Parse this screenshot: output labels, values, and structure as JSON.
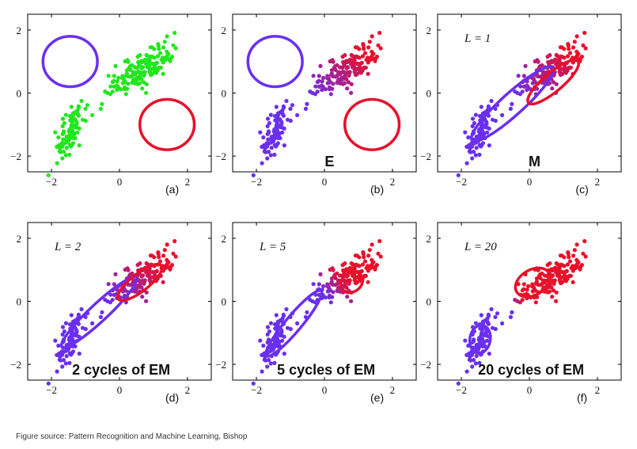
{
  "caption": "Figure source: Pattern Recognition and Machine Learning, Bishop",
  "chart_data": [
    {
      "type": "scatter",
      "sublabel": "(a)",
      "iter_label": "",
      "step_label": "",
      "mode": "data",
      "xlim": [
        -2.7,
        2.7
      ],
      "ylim": [
        -2.5,
        2.5
      ],
      "xticks": [
        "−2",
        "0",
        "2"
      ],
      "yticks": [
        "2",
        "0",
        "−2"
      ],
      "ellipses": [
        {
          "name": "blue-component",
          "color": "#6a2ff0",
          "cx": -1.45,
          "cy": 1.0,
          "rx": 0.8,
          "ry": 0.8,
          "angle": 0
        },
        {
          "name": "red-component",
          "color": "#e8102a",
          "cx": 1.4,
          "cy": -1.0,
          "rx": 0.8,
          "ry": 0.8,
          "angle": 0
        }
      ]
    },
    {
      "type": "scatter",
      "sublabel": "(b)",
      "iter_label": "",
      "step_label": "E",
      "mode": "estep",
      "xlim": [
        -2.7,
        2.7
      ],
      "ylim": [
        -2.5,
        2.5
      ],
      "xticks": [
        "−2",
        "0",
        "2"
      ],
      "yticks": [
        "2",
        "0",
        "−2"
      ],
      "ellipses": [
        {
          "name": "blue-component",
          "color": "#6a2ff0",
          "cx": -1.45,
          "cy": 1.0,
          "rx": 0.8,
          "ry": 0.8,
          "angle": 0
        },
        {
          "name": "red-component",
          "color": "#e8102a",
          "cx": 1.4,
          "cy": -1.0,
          "rx": 0.8,
          "ry": 0.8,
          "angle": 0
        }
      ]
    },
    {
      "type": "scatter",
      "sublabel": "(c)",
      "iter_label": "L = 1",
      "step_label": "M",
      "mode": "estep",
      "xlim": [
        -2.7,
        2.7
      ],
      "ylim": [
        -2.5,
        2.5
      ],
      "xticks": [
        "−2",
        "0",
        "2"
      ],
      "yticks": [
        "2",
        "0",
        "−2"
      ],
      "ellipses": [
        {
          "name": "blue-component",
          "color": "#6a2ff0",
          "cx": -0.5,
          "cy": -0.35,
          "rx": 1.6,
          "ry": 0.35,
          "angle": 42
        },
        {
          "name": "red-component",
          "color": "#e8102a",
          "cx": 0.7,
          "cy": 0.35,
          "rx": 0.95,
          "ry": 0.3,
          "angle": 40
        }
      ]
    },
    {
      "type": "scatter",
      "sublabel": "(d)",
      "iter_label": "L = 2",
      "step_label": "2 cycles of EM",
      "mode": "estep",
      "xlim": [
        -2.7,
        2.7
      ],
      "ylim": [
        -2.5,
        2.5
      ],
      "xticks": [
        "−2",
        "0",
        "2"
      ],
      "yticks": [
        "2",
        "0",
        "−2"
      ],
      "ellipses": [
        {
          "name": "blue-component",
          "color": "#6a2ff0",
          "cx": -0.6,
          "cy": -0.35,
          "rx": 1.5,
          "ry": 0.28,
          "angle": 43
        },
        {
          "name": "red-component",
          "color": "#e8102a",
          "cx": 0.6,
          "cy": 0.6,
          "rx": 0.8,
          "ry": 0.28,
          "angle": 38
        }
      ]
    },
    {
      "type": "scatter",
      "sublabel": "(e)",
      "iter_label": "L = 5",
      "step_label": "5 cycles of EM",
      "mode": "split5",
      "xlim": [
        -2.7,
        2.7
      ],
      "ylim": [
        -2.5,
        2.5
      ],
      "xticks": [
        "−2",
        "0",
        "2"
      ],
      "yticks": [
        "2",
        "0",
        "−2"
      ],
      "ellipses": [
        {
          "name": "blue-component",
          "color": "#6a2ff0",
          "cx": -0.9,
          "cy": -0.7,
          "rx": 1.25,
          "ry": 0.25,
          "angle": 50
        },
        {
          "name": "red-component",
          "color": "#e8102a",
          "cx": 0.8,
          "cy": 0.6,
          "rx": 0.35,
          "ry": 0.3,
          "angle": 35
        }
      ]
    },
    {
      "type": "scatter",
      "sublabel": "(f)",
      "iter_label": "L = 20",
      "step_label": "20 cycles of EM",
      "mode": "final",
      "xlim": [
        -2.7,
        2.7
      ],
      "ylim": [
        -2.5,
        2.5
      ],
      "xticks": [
        "−2",
        "0",
        "2"
      ],
      "yticks": [
        "2",
        "0",
        "−2"
      ],
      "ellipses": [
        {
          "name": "blue-component",
          "color": "#6a2ff0",
          "cx": -1.45,
          "cy": -1.2,
          "rx": 0.3,
          "ry": 0.45,
          "angle": -10
        },
        {
          "name": "red-component",
          "color": "#e8102a",
          "cx": 0.1,
          "cy": 0.6,
          "rx": 0.55,
          "ry": 0.4,
          "angle": 30
        }
      ]
    }
  ]
}
